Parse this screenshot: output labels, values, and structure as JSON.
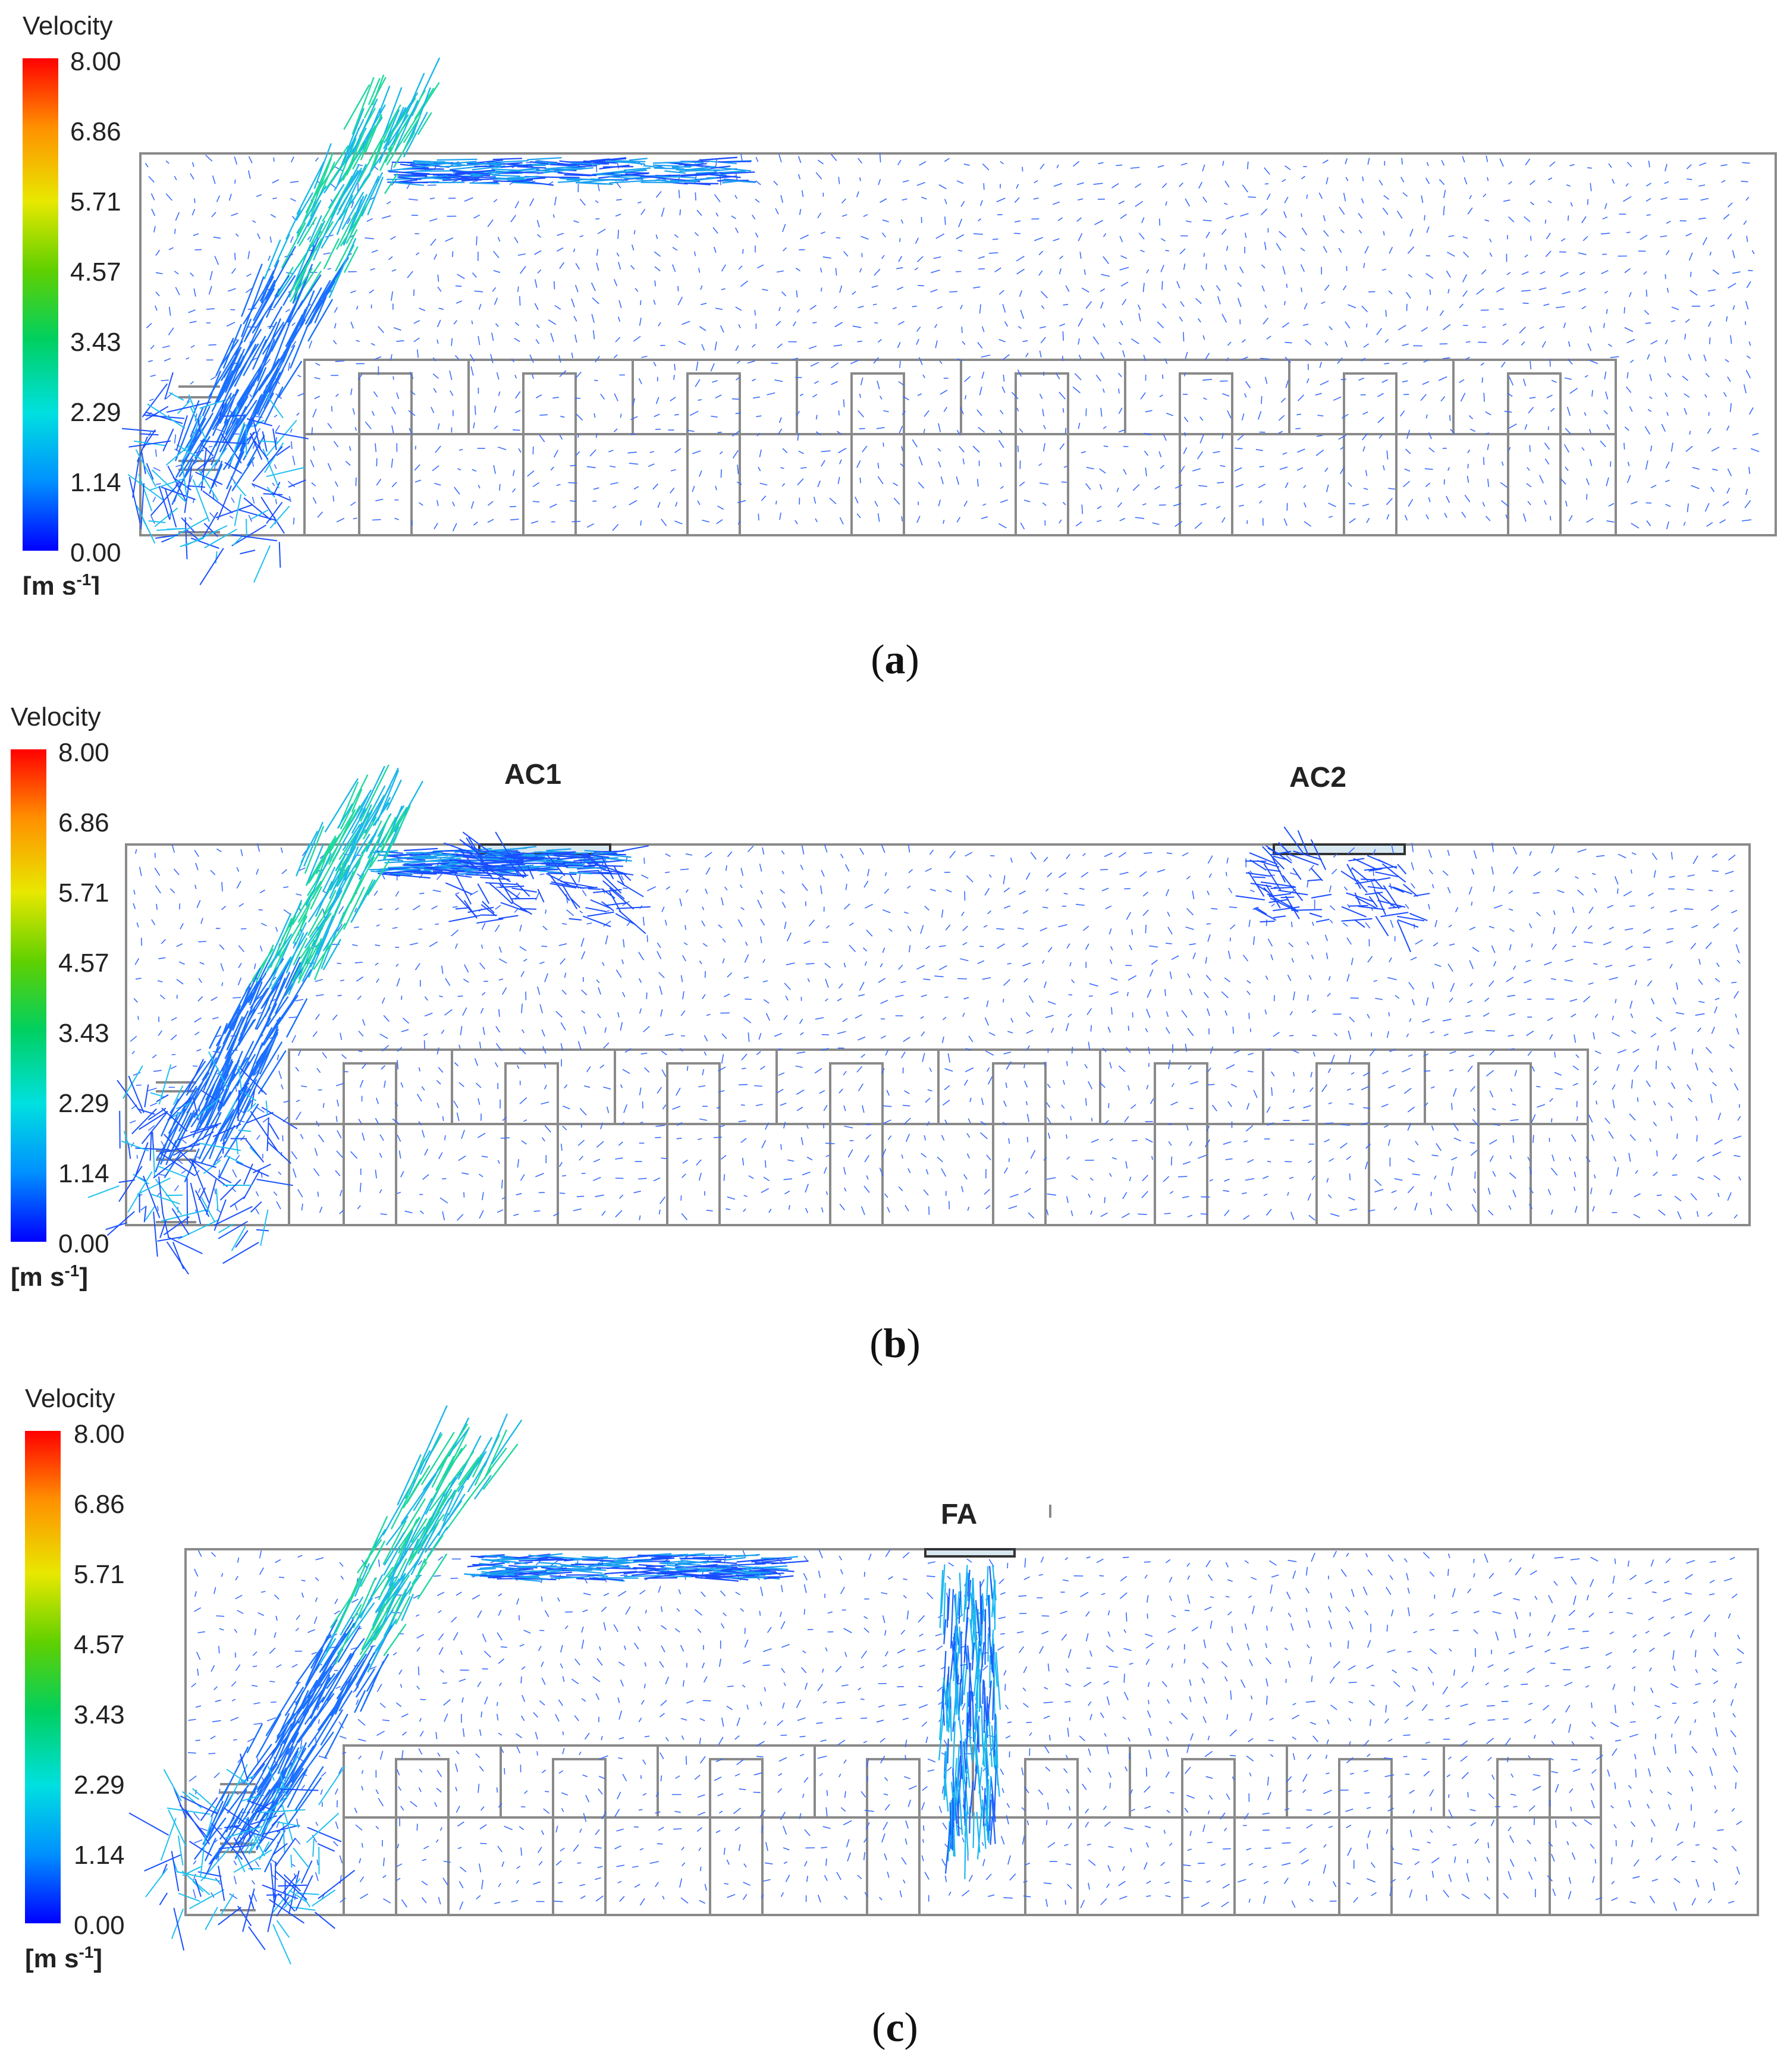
{
  "legend": {
    "title": "Velocity",
    "ticks": [
      "8.00",
      "6.86",
      "5.71",
      "4.57",
      "3.43",
      "2.29",
      "1.14",
      "0.00"
    ],
    "unit_main": "[m s",
    "unit_sup": "-1",
    "unit_end": "]",
    "range": [
      0,
      8
    ],
    "colors": [
      "#0000ff",
      "#00a0ff",
      "#00e5e5",
      "#00d060",
      "#40d000",
      "#e8e800",
      "#ff9000",
      "#ff0000"
    ]
  },
  "panels": [
    {
      "id": "a",
      "caption_open": "(",
      "caption_letter": "a",
      "caption_close": ")",
      "labels": []
    },
    {
      "id": "b",
      "caption_open": "(",
      "caption_letter": "b",
      "caption_close": ")",
      "labels": [
        "AC1",
        "AC2"
      ]
    },
    {
      "id": "c",
      "caption_open": "(",
      "caption_letter": "c",
      "caption_close": ")",
      "labels": [
        "FA"
      ]
    }
  ],
  "colors": {
    "room_outline": "#8a8a8a",
    "vector_main": "#1f5bff",
    "vector_fast": "#00d0b0",
    "vector_peak": "#40e080"
  }
}
